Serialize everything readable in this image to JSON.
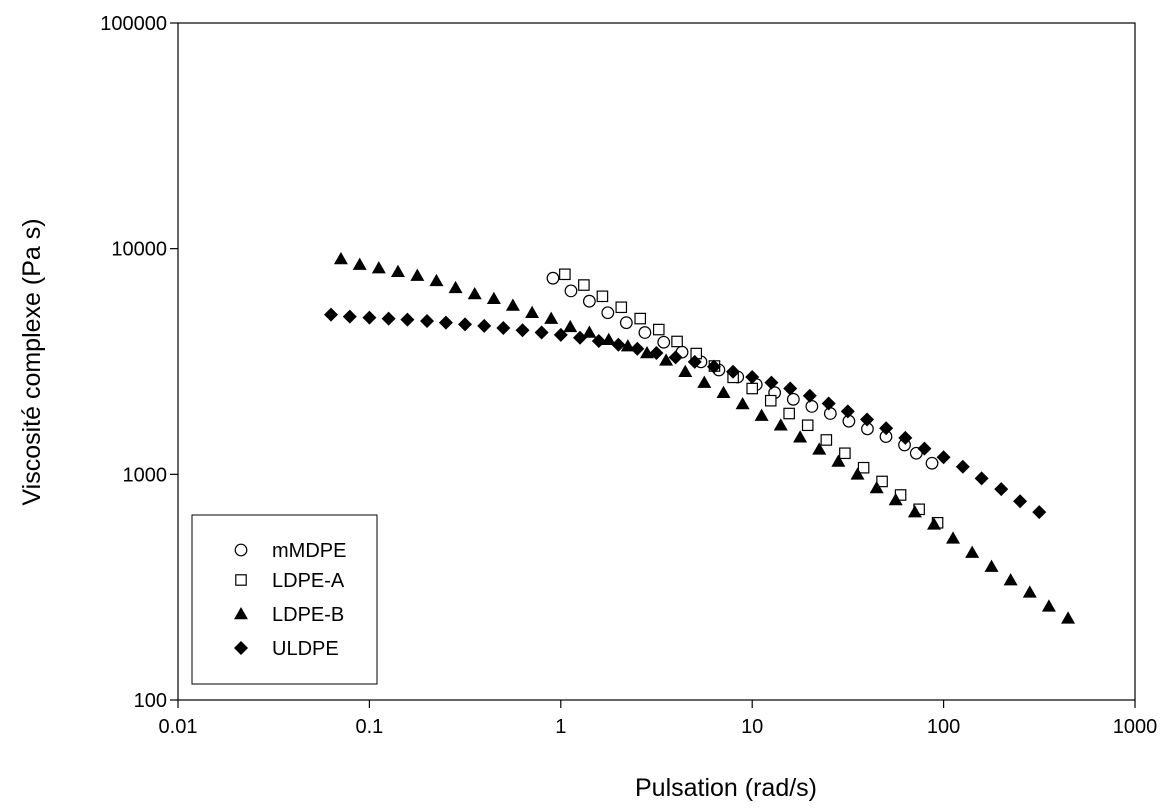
{
  "chart_data": {
    "type": "scatter",
    "title": "",
    "xlabel": "Pulsation (rad/s)",
    "ylabel": "Viscosité complexe (Pa s)",
    "xscale": "log",
    "yscale": "log",
    "xlim": [
      0.01,
      1000
    ],
    "ylim": [
      100,
      100000
    ],
    "x_ticks": [
      "0.01",
      "0.1",
      "1",
      "10",
      "100",
      "1000"
    ],
    "y_ticks": [
      "100",
      "1000",
      "10000",
      "100000"
    ],
    "grid": false,
    "legend_position": "bottom-left",
    "series": [
      {
        "name": "mMDPE",
        "marker": "circle-open",
        "x": [
          0.91,
          1.13,
          1.41,
          1.76,
          2.2,
          2.75,
          3.45,
          4.3,
          5.4,
          6.7,
          8.4,
          10.5,
          13.1,
          16.4,
          20.5,
          25.6,
          32,
          40,
          50,
          62.5,
          72,
          87
        ],
        "y": [
          7400,
          6500,
          5850,
          5200,
          4700,
          4250,
          3850,
          3480,
          3150,
          2900,
          2700,
          2500,
          2300,
          2150,
          2000,
          1860,
          1720,
          1590,
          1470,
          1350,
          1240,
          1120
        ]
      },
      {
        "name": "LDPE-A",
        "marker": "square-open",
        "x": [
          1.05,
          1.32,
          1.65,
          2.07,
          2.6,
          3.25,
          4.05,
          5.1,
          6.35,
          7.95,
          10,
          12.5,
          15.6,
          19.5,
          24.4,
          30.5,
          38.2,
          47.7,
          59.6,
          74.5,
          93
        ],
        "y": [
          7700,
          6900,
          6150,
          5500,
          4900,
          4380,
          3880,
          3430,
          3020,
          2690,
          2400,
          2120,
          1860,
          1650,
          1420,
          1240,
          1070,
          930,
          810,
          700,
          610
        ]
      },
      {
        "name": "LDPE-B",
        "marker": "triangle-filled",
        "x": [
          0.071,
          0.089,
          0.112,
          0.141,
          0.178,
          0.224,
          0.282,
          0.355,
          0.447,
          0.562,
          0.708,
          0.891,
          1.12,
          1.41,
          1.78,
          2.24,
          2.82,
          3.55,
          4.47,
          5.62,
          7.08,
          8.91,
          11.2,
          14.1,
          17.8,
          22.4,
          28.2,
          35.5,
          44.7,
          56.2,
          70.8,
          89.1,
          112,
          141,
          178,
          224,
          282,
          355,
          447
        ],
        "y": [
          9000,
          8500,
          8200,
          7900,
          7600,
          7200,
          6700,
          6300,
          6000,
          5600,
          5200,
          4900,
          4500,
          4250,
          3950,
          3700,
          3450,
          3200,
          2850,
          2550,
          2300,
          2050,
          1820,
          1650,
          1460,
          1290,
          1140,
          1000,
          870,
          770,
          680,
          600,
          520,
          450,
          390,
          340,
          300,
          260,
          230
        ]
      },
      {
        "name": "ULDPE",
        "marker": "diamond-filled",
        "x": [
          0.063,
          0.079,
          0.1,
          0.126,
          0.158,
          0.2,
          0.251,
          0.316,
          0.398,
          0.501,
          0.631,
          0.794,
          1,
          1.26,
          1.58,
          2,
          2.51,
          3.16,
          3.98,
          5.01,
          6.31,
          7.94,
          10,
          12.6,
          15.8,
          20,
          25.1,
          31.6,
          39.8,
          50.1,
          63.1,
          79.4,
          100,
          126,
          158,
          200,
          251,
          316
        ],
        "y": [
          5100,
          5000,
          4950,
          4900,
          4850,
          4780,
          4700,
          4620,
          4550,
          4450,
          4350,
          4250,
          4150,
          4030,
          3900,
          3750,
          3600,
          3450,
          3300,
          3150,
          3000,
          2850,
          2700,
          2550,
          2400,
          2230,
          2060,
          1900,
          1750,
          1600,
          1450,
          1300,
          1190,
          1080,
          960,
          860,
          760,
          680
        ]
      }
    ]
  }
}
